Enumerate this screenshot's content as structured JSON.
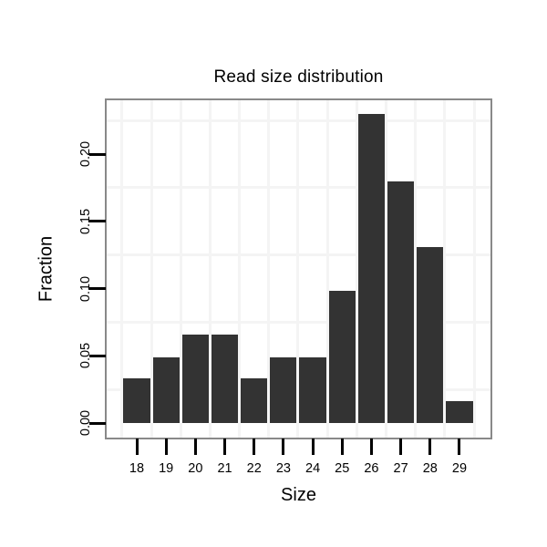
{
  "chart_data": {
    "type": "bar",
    "title": "Read size distribution",
    "xlabel": "Size",
    "ylabel": "Fraction",
    "categories": [
      "18",
      "19",
      "20",
      "21",
      "22",
      "23",
      "24",
      "25",
      "26",
      "27",
      "28",
      "29"
    ],
    "values": [
      0.033,
      0.049,
      0.066,
      0.066,
      0.033,
      0.049,
      0.049,
      0.098,
      0.23,
      0.18,
      0.131,
      0.016
    ],
    "y_ticks": [
      {
        "v": 0.0,
        "label": "0.00"
      },
      {
        "v": 0.05,
        "label": "0.05"
      },
      {
        "v": 0.1,
        "label": "0.10"
      },
      {
        "v": 0.15,
        "label": "0.15"
      },
      {
        "v": 0.2,
        "label": "0.20"
      }
    ],
    "ylim": [
      -0.011,
      0.24
    ],
    "grid": "faint minor gridlines between ticks, no major gridlines",
    "legend_position": "none",
    "colors": {
      "bar": "#333333",
      "panel_border": "#898989",
      "gridline": "#f4f4f4",
      "background": "#ffffff",
      "tick": "#000000",
      "text": "#000000"
    }
  }
}
